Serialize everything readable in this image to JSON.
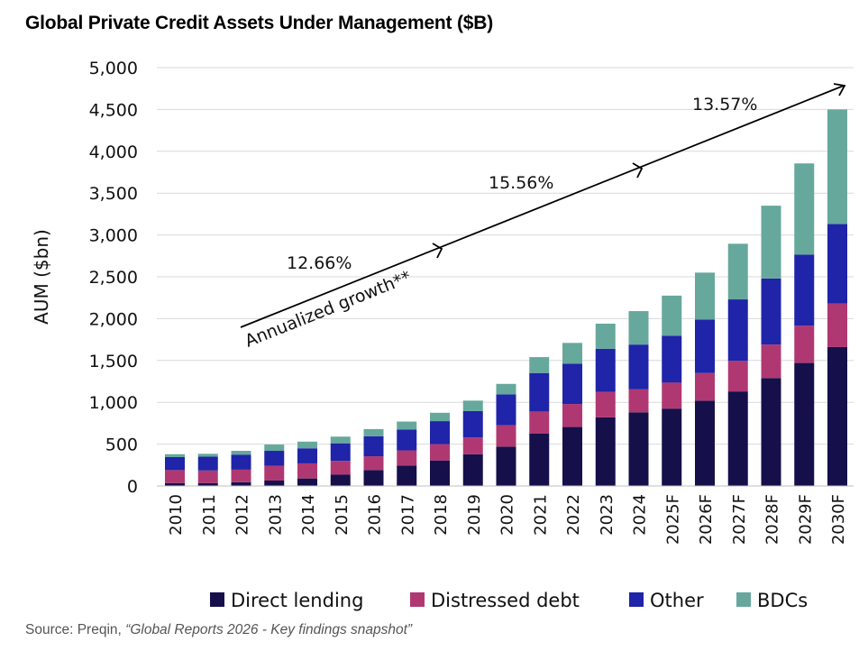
{
  "title": "Global Private Credit Assets Under Management ($B)",
  "source": {
    "prefix": "Source: Preqin, ",
    "title": "“Global Reports 2026 - Key findings snapshot”"
  },
  "chart_data": {
    "type": "bar",
    "stacked": true,
    "ylabel": "AUM ($bn)",
    "ylim": [
      0,
      5000
    ],
    "yticks": [
      "0",
      "500",
      "1,000",
      "1,500",
      "2,000",
      "2,500",
      "3,000",
      "3,500",
      "4,000",
      "4,500",
      "5,000"
    ],
    "ytick_values": [
      0,
      500,
      1000,
      1500,
      2000,
      2500,
      3000,
      3500,
      4000,
      4500,
      5000
    ],
    "grid": true,
    "legend_position": "bottom",
    "categories": [
      "2010",
      "2011",
      "2012",
      "2013",
      "2014",
      "2015",
      "2016",
      "2017",
      "2018",
      "2019",
      "2020",
      "2021",
      "2022",
      "2023",
      "2024",
      "2025F",
      "2026F",
      "2027F",
      "2028F",
      "2029F",
      "2030F"
    ],
    "series": [
      {
        "name": "Direct lending",
        "color": "#15104a",
        "values": [
          35,
          35,
          45,
          65,
          90,
          135,
          190,
          245,
          305,
          380,
          470,
          625,
          705,
          820,
          880,
          925,
          1020,
          1130,
          1290,
          1470,
          1660
        ]
      },
      {
        "name": "Distressed debt",
        "color": "#b03872",
        "values": [
          155,
          150,
          150,
          175,
          180,
          165,
          165,
          180,
          195,
          200,
          255,
          265,
          275,
          305,
          275,
          310,
          330,
          365,
          400,
          445,
          520
        ]
      },
      {
        "name": "Other",
        "color": "#1f24a8",
        "values": [
          155,
          165,
          180,
          180,
          180,
          210,
          240,
          250,
          275,
          315,
          370,
          460,
          480,
          515,
          535,
          560,
          640,
          735,
          790,
          850,
          950
        ]
      },
      {
        "name": "BDCs",
        "color": "#66a89c",
        "values": [
          35,
          35,
          45,
          75,
          80,
          80,
          85,
          95,
          100,
          125,
          125,
          190,
          250,
          300,
          400,
          480,
          560,
          665,
          870,
          1090,
          1370
        ]
      }
    ],
    "annotations": [
      {
        "text": "12.66%"
      },
      {
        "text": "15.56%"
      },
      {
        "text": "13.57%"
      },
      {
        "text": "Annualized growth**"
      }
    ]
  }
}
